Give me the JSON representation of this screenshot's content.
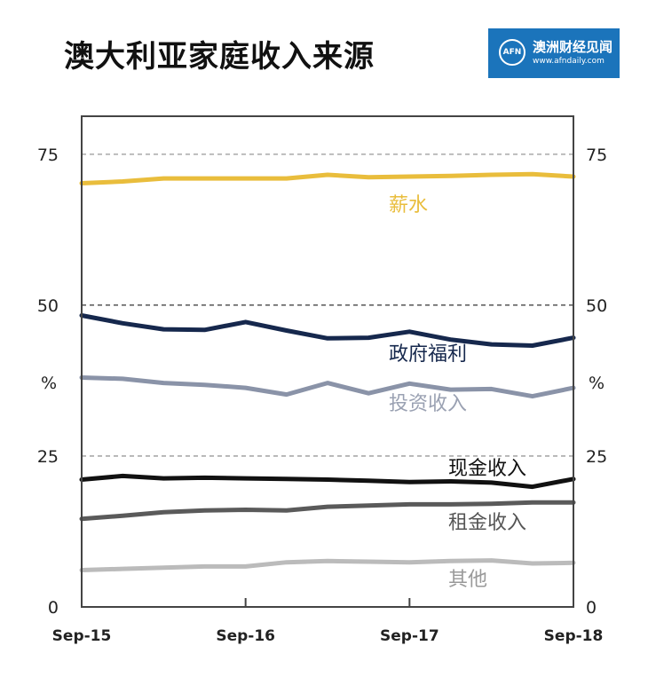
{
  "header": {
    "title": "澳大利亚家庭收入来源",
    "logo_name": "澳洲财经见闻",
    "logo_url": "www.afndaily.com",
    "logo_mark": "AFN"
  },
  "chart_data": {
    "type": "line",
    "title": "澳大利亚家庭收入来源",
    "ylabel_left": "%",
    "ylabel_right": "%",
    "ylim": [
      0,
      80
    ],
    "yticks": [
      0,
      25,
      50,
      75
    ],
    "gridlines": [
      25,
      50,
      75
    ],
    "xticks": [
      "Sep-15",
      "Sep-16",
      "Sep-17",
      "Sep-18"
    ],
    "x": [
      0,
      0.5,
      1,
      1.5,
      2,
      2.5,
      3,
      3.5,
      4,
      4.5,
      5,
      5.5,
      6
    ],
    "series": [
      {
        "name": "薪水",
        "color": "#e9bd3c",
        "width": 5,
        "values": [
          70.2,
          70.5,
          71.0,
          71.0,
          71.0,
          71.0,
          71.6,
          71.2,
          71.3,
          71.4,
          71.6,
          71.7,
          71.3
        ]
      },
      {
        "name": "政府福利",
        "color": "#16284d",
        "width": 5,
        "values": [
          48.3,
          47.0,
          46.0,
          45.9,
          47.2,
          45.8,
          44.5,
          44.6,
          45.6,
          44.3,
          43.5,
          43.3,
          44.6
        ]
      },
      {
        "name": "投资收入",
        "color": "#8a93a8",
        "width": 5,
        "values": [
          38.0,
          37.8,
          37.1,
          36.8,
          36.3,
          35.2,
          37.1,
          35.4,
          37.0,
          36.0,
          36.1,
          34.9,
          36.3
        ]
      },
      {
        "name": "现金收入",
        "color": "#111111",
        "width": 5,
        "values": [
          21.1,
          21.7,
          21.3,
          21.4,
          21.3,
          21.2,
          21.1,
          20.9,
          20.7,
          20.8,
          20.6,
          19.9,
          21.2
        ]
      },
      {
        "name": "租金收入",
        "color": "#5a5a5a",
        "width": 5,
        "values": [
          14.6,
          15.1,
          15.7,
          16.0,
          16.1,
          16.0,
          16.6,
          16.8,
          17.0,
          17.0,
          17.1,
          17.3,
          17.3
        ]
      },
      {
        "name": "其他",
        "color": "#bbbbbb",
        "width": 5,
        "values": [
          6.1,
          6.3,
          6.5,
          6.7,
          6.7,
          7.4,
          7.6,
          7.5,
          7.4,
          7.6,
          7.7,
          7.2,
          7.3
        ]
      }
    ],
    "series_labels": [
      {
        "text": "薪水",
        "color": "#e9bd3c",
        "bold": false
      },
      {
        "text": "政府福利",
        "color": "#16284d",
        "bold": false
      },
      {
        "text": "投资收入",
        "color": "#9aa1b2",
        "bold": false
      },
      {
        "text": "现金收入",
        "color": "#111111",
        "bold": false
      },
      {
        "text": "租金收入",
        "color": "#555555",
        "bold": false
      },
      {
        "text": "其他",
        "color": "#999999",
        "bold": false
      }
    ],
    "grid": true
  }
}
